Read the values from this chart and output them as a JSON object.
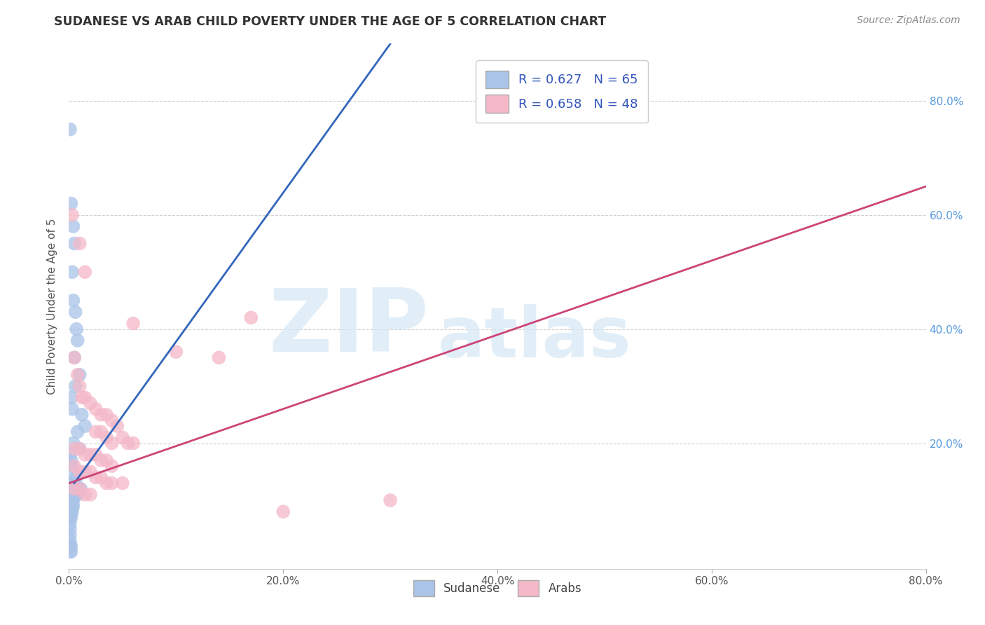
{
  "title": "SUDANESE VS ARAB CHILD POVERTY UNDER THE AGE OF 5 CORRELATION CHART",
  "source": "Source: ZipAtlas.com",
  "ylabel": "Child Poverty Under the Age of 5",
  "xlim": [
    0.0,
    0.8
  ],
  "ylim": [
    -0.02,
    0.9
  ],
  "xticks": [
    0.0,
    0.2,
    0.4,
    0.6,
    0.8
  ],
  "xticklabels": [
    "0.0%",
    "20.0%",
    "40.0%",
    "60.0%",
    "80.0%"
  ],
  "ytick_positions": [
    0.2,
    0.4,
    0.6,
    0.8
  ],
  "yticklabels_right": [
    "20.0%",
    "40.0%",
    "60.0%",
    "80.0%"
  ],
  "grid_color": "#cccccc",
  "bg_color": "#ffffff",
  "watermark_zip": "ZIP",
  "watermark_atlas": "atlas",
  "sudanese_color": "#aac4e8",
  "arab_color": "#f4b8c8",
  "sudanese_line_color": "#3366bb",
  "arab_line_color": "#cc4477",
  "sudanese_R": 0.627,
  "sudanese_N": 65,
  "arab_R": 0.658,
  "arab_N": 48,
  "sudanese_line": [
    [
      0.005,
      0.13
    ],
    [
      0.3,
      0.9
    ]
  ],
  "arab_line": [
    [
      0.0,
      0.13
    ],
    [
      0.8,
      0.65
    ]
  ],
  "sudanese_scatter": [
    [
      0.001,
      0.75
    ],
    [
      0.002,
      0.62
    ],
    [
      0.004,
      0.58
    ],
    [
      0.005,
      0.55
    ],
    [
      0.003,
      0.5
    ],
    [
      0.004,
      0.45
    ],
    [
      0.006,
      0.43
    ],
    [
      0.007,
      0.4
    ],
    [
      0.008,
      0.38
    ],
    [
      0.005,
      0.35
    ],
    [
      0.01,
      0.32
    ],
    [
      0.006,
      0.3
    ],
    [
      0.002,
      0.28
    ],
    [
      0.003,
      0.26
    ],
    [
      0.012,
      0.25
    ],
    [
      0.015,
      0.23
    ],
    [
      0.008,
      0.22
    ],
    [
      0.004,
      0.2
    ],
    [
      0.01,
      0.19
    ],
    [
      0.001,
      0.18
    ],
    [
      0.002,
      0.17
    ],
    [
      0.003,
      0.16
    ],
    [
      0.005,
      0.15
    ],
    [
      0.007,
      0.14
    ],
    [
      0.001,
      0.13
    ],
    [
      0.002,
      0.13
    ],
    [
      0.003,
      0.13
    ],
    [
      0.004,
      0.13
    ],
    [
      0.005,
      0.13
    ],
    [
      0.006,
      0.12
    ],
    [
      0.007,
      0.12
    ],
    [
      0.008,
      0.12
    ],
    [
      0.009,
      0.12
    ],
    [
      0.01,
      0.12
    ],
    [
      0.011,
      0.12
    ],
    [
      0.001,
      0.12
    ],
    [
      0.001,
      0.11
    ],
    [
      0.002,
      0.11
    ],
    [
      0.003,
      0.11
    ],
    [
      0.004,
      0.11
    ],
    [
      0.005,
      0.11
    ],
    [
      0.006,
      0.11
    ],
    [
      0.007,
      0.11
    ],
    [
      0.008,
      0.11
    ],
    [
      0.001,
      0.1
    ],
    [
      0.002,
      0.1
    ],
    [
      0.003,
      0.1
    ],
    [
      0.004,
      0.1
    ],
    [
      0.001,
      0.09
    ],
    [
      0.002,
      0.09
    ],
    [
      0.003,
      0.09
    ],
    [
      0.004,
      0.09
    ],
    [
      0.001,
      0.08
    ],
    [
      0.002,
      0.08
    ],
    [
      0.003,
      0.08
    ],
    [
      0.001,
      0.07
    ],
    [
      0.002,
      0.07
    ],
    [
      0.001,
      0.06
    ],
    [
      0.001,
      0.05
    ],
    [
      0.001,
      0.04
    ],
    [
      0.001,
      0.03
    ],
    [
      0.001,
      0.02
    ],
    [
      0.002,
      0.02
    ],
    [
      0.001,
      0.01
    ],
    [
      0.002,
      0.01
    ]
  ],
  "arab_scatter": [
    [
      0.003,
      0.6
    ],
    [
      0.01,
      0.55
    ],
    [
      0.015,
      0.5
    ],
    [
      0.005,
      0.35
    ],
    [
      0.008,
      0.32
    ],
    [
      0.01,
      0.3
    ],
    [
      0.012,
      0.28
    ],
    [
      0.015,
      0.28
    ],
    [
      0.02,
      0.27
    ],
    [
      0.025,
      0.26
    ],
    [
      0.03,
      0.25
    ],
    [
      0.035,
      0.25
    ],
    [
      0.04,
      0.24
    ],
    [
      0.045,
      0.23
    ],
    [
      0.025,
      0.22
    ],
    [
      0.03,
      0.22
    ],
    [
      0.035,
      0.21
    ],
    [
      0.05,
      0.21
    ],
    [
      0.055,
      0.2
    ],
    [
      0.04,
      0.2
    ],
    [
      0.06,
      0.2
    ],
    [
      0.005,
      0.19
    ],
    [
      0.01,
      0.19
    ],
    [
      0.015,
      0.18
    ],
    [
      0.02,
      0.18
    ],
    [
      0.025,
      0.18
    ],
    [
      0.03,
      0.17
    ],
    [
      0.035,
      0.17
    ],
    [
      0.04,
      0.16
    ],
    [
      0.005,
      0.16
    ],
    [
      0.01,
      0.15
    ],
    [
      0.015,
      0.15
    ],
    [
      0.02,
      0.15
    ],
    [
      0.025,
      0.14
    ],
    [
      0.03,
      0.14
    ],
    [
      0.035,
      0.13
    ],
    [
      0.04,
      0.13
    ],
    [
      0.05,
      0.13
    ],
    [
      0.005,
      0.12
    ],
    [
      0.01,
      0.12
    ],
    [
      0.015,
      0.11
    ],
    [
      0.02,
      0.11
    ],
    [
      0.06,
      0.41
    ],
    [
      0.1,
      0.36
    ],
    [
      0.14,
      0.35
    ],
    [
      0.17,
      0.42
    ],
    [
      0.2,
      0.08
    ],
    [
      0.3,
      0.1
    ]
  ],
  "legend_entries": [
    "Sudanese",
    "Arabs"
  ],
  "legend_colors": [
    "#aac4e8",
    "#f4b8c8"
  ]
}
